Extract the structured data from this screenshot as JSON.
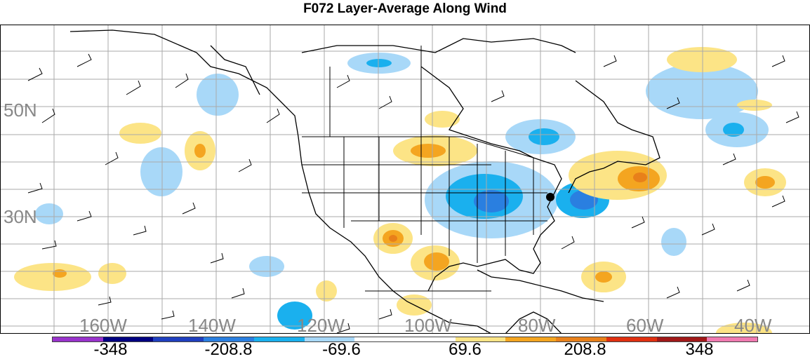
{
  "title": "F072 Layer-Average Along Wind",
  "map": {
    "lat_labels": [
      "50N",
      "30N"
    ],
    "lon_labels": [
      "160W",
      "140W",
      "120W",
      "100W",
      "80W",
      "60W",
      "40W"
    ],
    "landmask_color": "#000000",
    "grid_color": "#aaaaaa",
    "marker": "storm-location-dot"
  },
  "colorbar": {
    "colors": [
      "#9933cc",
      "#000080",
      "#1f3fbf",
      "#2a7fe0",
      "#1ab0ee",
      "#a8d8f8",
      "#ffffff",
      "#ffffff",
      "#fce486",
      "#f4a520",
      "#e8801a",
      "#e03010",
      "#a01818",
      "#f07ab0"
    ],
    "labels": [
      "-348",
      "-208.8",
      "-69.6",
      "69.6",
      "208.8",
      "348"
    ],
    "label_positions": [
      0.083,
      0.25,
      0.41,
      0.585,
      0.755,
      0.917
    ]
  }
}
